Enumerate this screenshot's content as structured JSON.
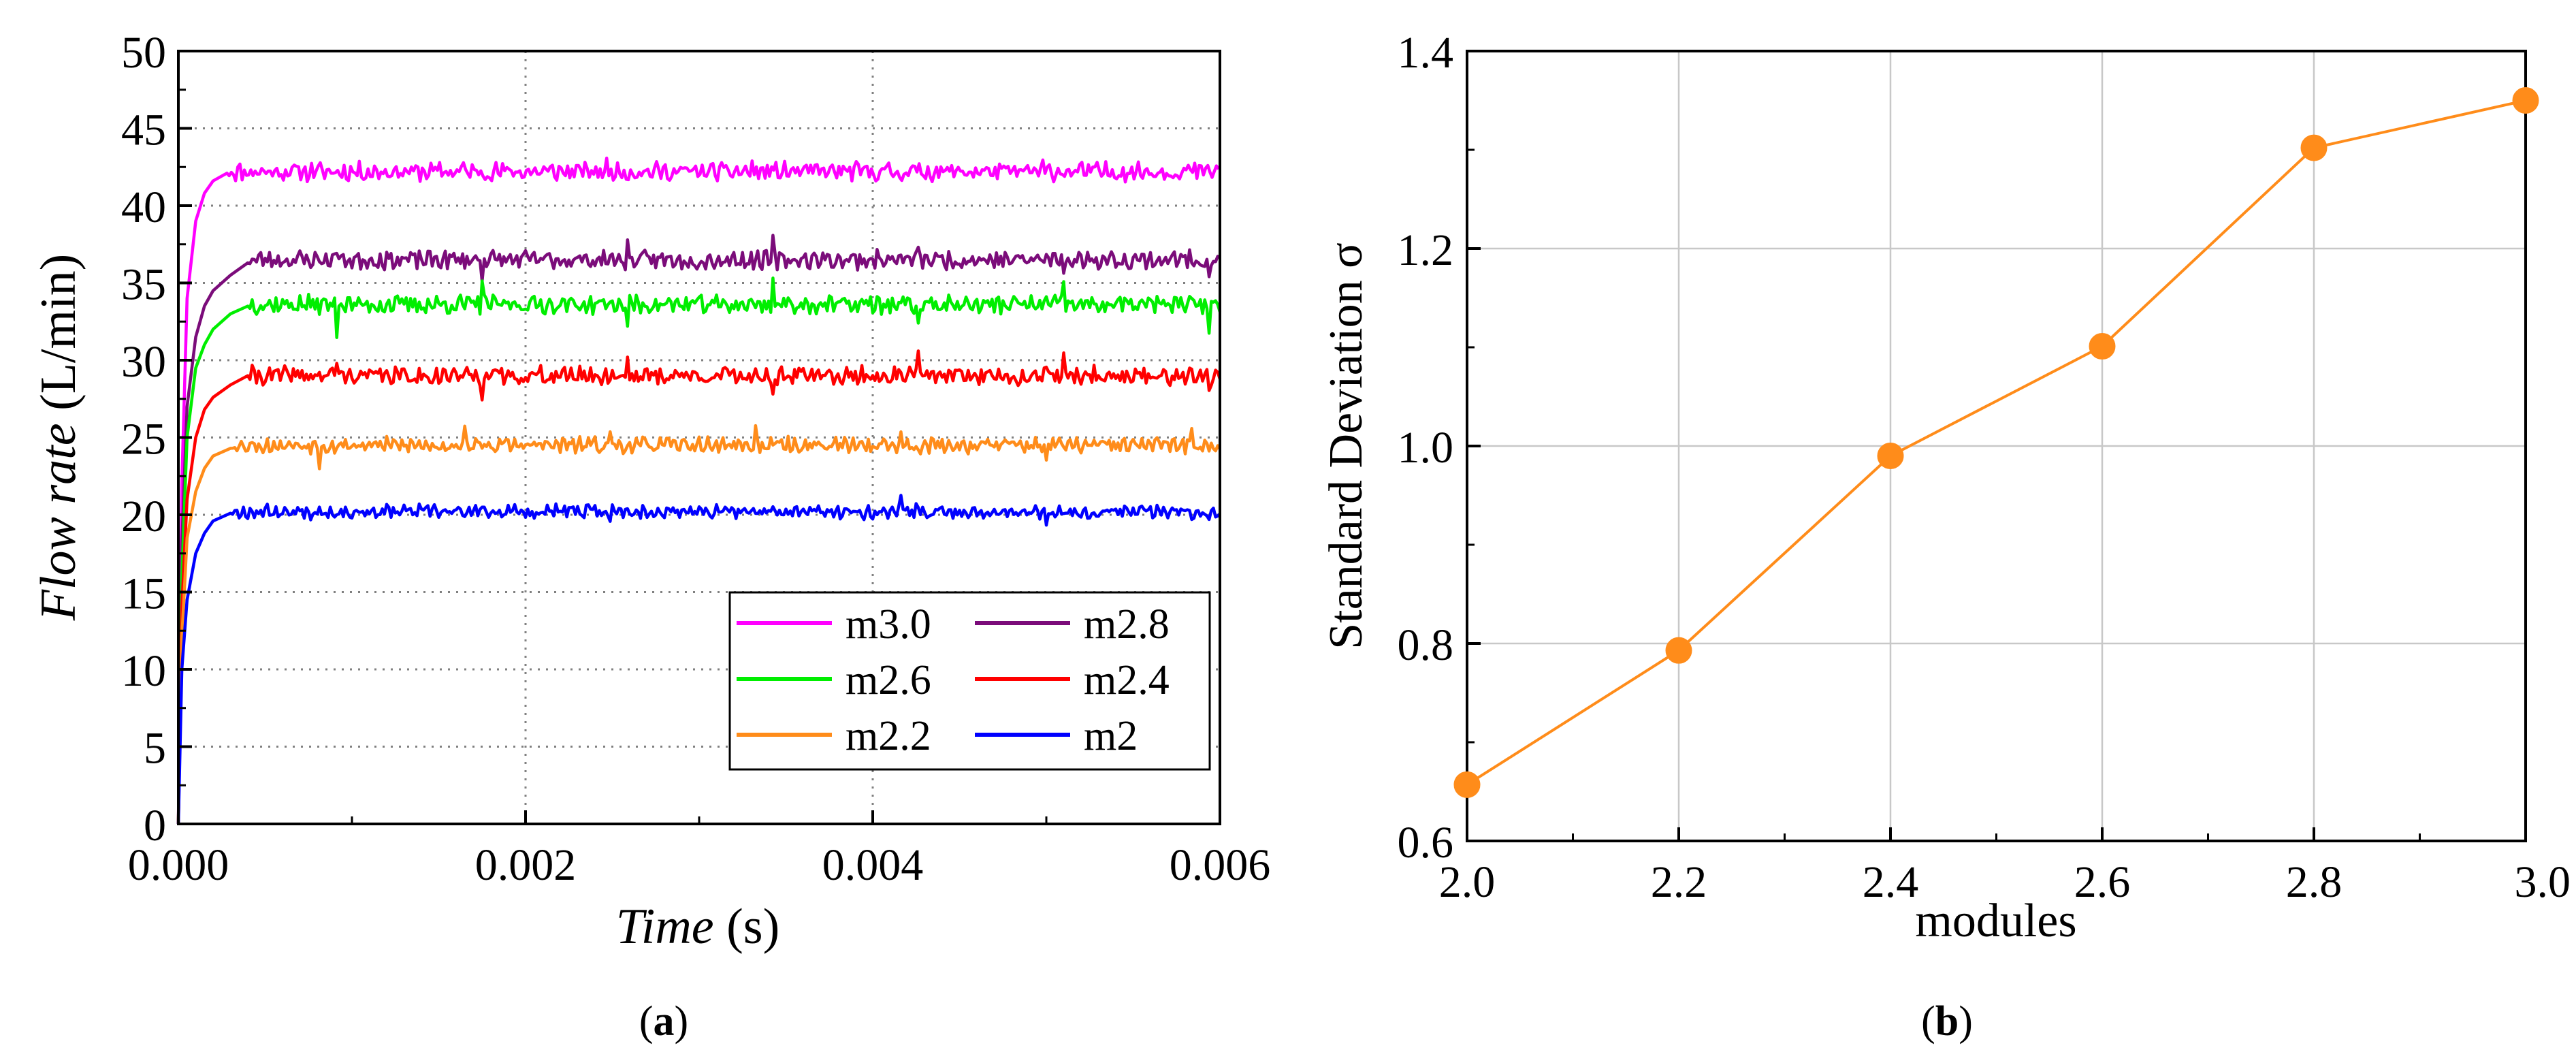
{
  "chart_data": [
    {
      "type": "line",
      "panel_label": "(a)",
      "panel_letter": "a",
      "title": "",
      "xlabel_italic": "Time",
      "xlabel_unit": " (s)",
      "ylabel_italic": "Flow rate",
      "ylabel_unit": " (L/min)",
      "xlim": [
        0,
        0.006
      ],
      "ylim": [
        0,
        50
      ],
      "xticks": [
        0,
        0.002,
        0.004,
        0.006
      ],
      "xtick_labels": [
        "0.000",
        "0.002",
        "0.004",
        "0.006"
      ],
      "yticks": [
        0,
        5,
        10,
        15,
        20,
        25,
        30,
        35,
        40,
        45,
        50
      ],
      "ytick_labels": [
        "0",
        "5",
        "10",
        "15",
        "20",
        "25",
        "30",
        "35",
        "40",
        "45",
        "50"
      ],
      "grid": "dotted",
      "legend_position": "bottom-right",
      "series": [
        {
          "name": "m3.0",
          "color": "#ff00ff",
          "steady_value": 42.2,
          "ripple": 0.5,
          "spike": 0.4,
          "seed": 11,
          "rise": [
            [
              0,
              0
            ],
            [
              2e-05,
              22
            ],
            [
              5e-05,
              34
            ],
            [
              0.0001,
              39
            ],
            [
              0.00015,
              40.8
            ],
            [
              0.0002,
              41.6
            ],
            [
              0.00028,
              42.1
            ]
          ]
        },
        {
          "name": "m2.8",
          "color": "#7b0c7a",
          "steady_value": 36.5,
          "ripple": 0.5,
          "spike": 1.0,
          "seed": 23,
          "rise": [
            [
              0,
              0
            ],
            [
              2e-05,
              18
            ],
            [
              5e-05,
              27
            ],
            [
              0.0001,
              31.5
            ],
            [
              0.00015,
              33.5
            ],
            [
              0.0002,
              34.5
            ],
            [
              0.0003,
              35.5
            ],
            [
              0.0004,
              36.3
            ]
          ]
        },
        {
          "name": "m2.6",
          "color": "#00ee00",
          "steady_value": 33.6,
          "ripple": 0.5,
          "spike": 1.8,
          "seed": 37,
          "rise": [
            [
              0,
              0
            ],
            [
              2e-05,
              16
            ],
            [
              5e-05,
              25
            ],
            [
              0.0001,
              29.5
            ],
            [
              0.00015,
              31
            ],
            [
              0.0002,
              32
            ],
            [
              0.0003,
              33
            ],
            [
              0.0004,
              33.5
            ]
          ]
        },
        {
          "name": "m2.4",
          "color": "#ff0000",
          "steady_value": 29.0,
          "ripple": 0.5,
          "spike": 1.2,
          "seed": 41,
          "rise": [
            [
              0,
              0
            ],
            [
              2e-05,
              14
            ],
            [
              5e-05,
              21
            ],
            [
              0.0001,
              25
            ],
            [
              0.00015,
              26.8
            ],
            [
              0.0002,
              27.6
            ],
            [
              0.0003,
              28.4
            ],
            [
              0.0004,
              29
            ]
          ]
        },
        {
          "name": "m2.2",
          "color": "#ff8c1a",
          "steady_value": 24.5,
          "ripple": 0.4,
          "spike": 1.0,
          "seed": 53,
          "rise": [
            [
              0,
              0
            ],
            [
              2e-05,
              12
            ],
            [
              5e-05,
              18.5
            ],
            [
              0.0001,
              21.5
            ],
            [
              0.00015,
              23
            ],
            [
              0.0002,
              23.8
            ],
            [
              0.0003,
              24.3
            ]
          ]
        },
        {
          "name": "m2",
          "color": "#0000ff",
          "steady_value": 20.2,
          "ripple": 0.35,
          "spike": 0.6,
          "seed": 67,
          "rise": [
            [
              0,
              0
            ],
            [
              2e-05,
              10
            ],
            [
              5e-05,
              14.5
            ],
            [
              0.0001,
              17.5
            ],
            [
              0.00015,
              18.8
            ],
            [
              0.0002,
              19.6
            ],
            [
              0.0003,
              20.1
            ]
          ]
        }
      ]
    },
    {
      "type": "line",
      "panel_label": "(b)",
      "panel_letter": "b",
      "title": "",
      "xlabel": "modules",
      "ylabel": "Standard Deviation σ",
      "xlim": [
        2.0,
        3.0
      ],
      "ylim": [
        0.6,
        1.4
      ],
      "xticks": [
        2.0,
        2.2,
        2.4,
        2.6,
        2.8,
        3.0
      ],
      "xtick_labels": [
        "2.0",
        "2.2",
        "2.4",
        "2.6",
        "2.8",
        "3.0"
      ],
      "yticks": [
        0.6,
        0.8,
        1.0,
        1.2,
        1.4
      ],
      "ytick_labels": [
        "0.6",
        "0.8",
        "1.0",
        "1.2",
        "1.4"
      ],
      "grid": "solid",
      "color": "#ff8c1a",
      "x": [
        2.0,
        2.2,
        2.4,
        2.6,
        2.8,
        3.0
      ],
      "y": [
        0.657,
        0.793,
        0.99,
        1.101,
        1.302,
        1.35
      ]
    }
  ]
}
